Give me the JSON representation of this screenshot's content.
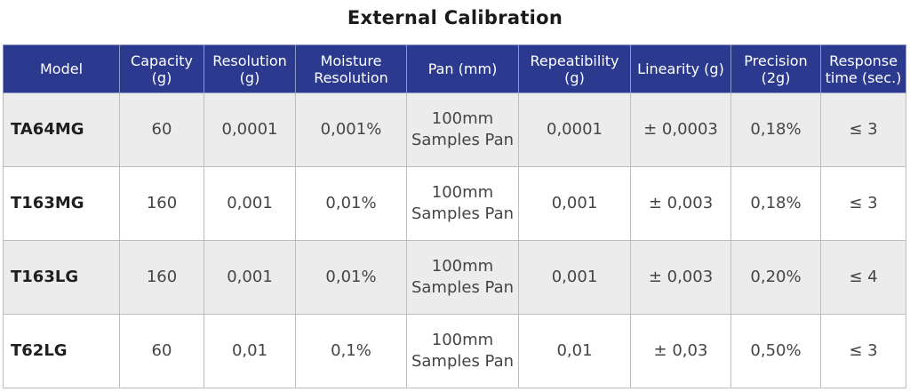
{
  "title": "External Calibration",
  "headers": [
    [
      "Model"
    ],
    [
      "Capacity",
      "(g)"
    ],
    [
      "Resolution",
      "(g)"
    ],
    [
      "Moisture",
      "Resolution"
    ],
    [
      "Pan (mm)"
    ],
    [
      "Repeatibility",
      "(g)"
    ],
    [
      "Linearity (g)"
    ],
    [
      "Precision",
      "(2g)"
    ],
    [
      "Response",
      "time (sec.)"
    ]
  ],
  "rows": [
    {
      "model": "TA64MG",
      "capacity": "60",
      "resolution": "0,0001",
      "moisture_resolution": "0,001%",
      "pan": [
        "100mm",
        "Samples Pan"
      ],
      "repeatibility": "0,0001",
      "linearity": "± 0,0003",
      "precision": "0,18%",
      "response_time": "≤ 3"
    },
    {
      "model": "T163MG",
      "capacity": "160",
      "resolution": "0,001",
      "moisture_resolution": "0,01%",
      "pan": [
        "100mm",
        "Samples Pan"
      ],
      "repeatibility": "0,001",
      "linearity": "± 0,003",
      "precision": "0,18%",
      "response_time": "≤ 3"
    },
    {
      "model": "T163LG",
      "capacity": "160",
      "resolution": "0,001",
      "moisture_resolution": "0,01%",
      "pan": [
        "100mm",
        "Samples Pan"
      ],
      "repeatibility": "0,001",
      "linearity": "± 0,003",
      "precision": "0,20%",
      "response_time": "≤ 4"
    },
    {
      "model": "T62LG",
      "capacity": "60",
      "resolution": "0,01",
      "moisture_resolution": "0,1%",
      "pan": [
        "100mm",
        "Samples Pan"
      ],
      "repeatibility": "0,01",
      "linearity": "± 0,03",
      "precision": "0,50%",
      "response_time": "≤ 3"
    }
  ],
  "colors": {
    "header_bg": "#2b3a8f",
    "header_text": "#ffffff",
    "stripe_bg": "#ececec"
  }
}
